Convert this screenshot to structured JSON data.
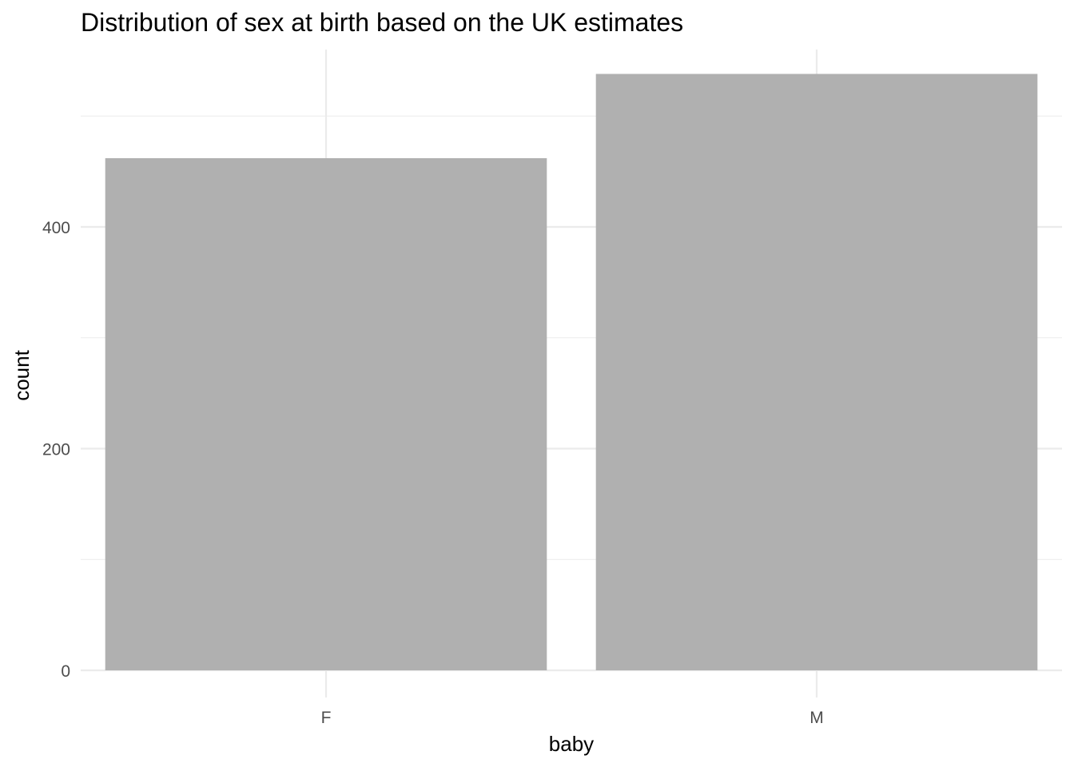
{
  "chart_data": {
    "type": "bar",
    "title": "Distribution of sex at birth based on the UK estimates",
    "xlabel": "baby",
    "ylabel": "count",
    "categories": [
      "F",
      "M"
    ],
    "values": [
      462,
      538
    ],
    "ylim": [
      0,
      560
    ],
    "yticks": [
      0,
      200,
      400
    ],
    "ytick_labels": [
      "0",
      "200",
      "400"
    ],
    "grid": true,
    "legend": "none",
    "bar_color": "#b0b0b0",
    "grid_color": "#ebebeb"
  }
}
